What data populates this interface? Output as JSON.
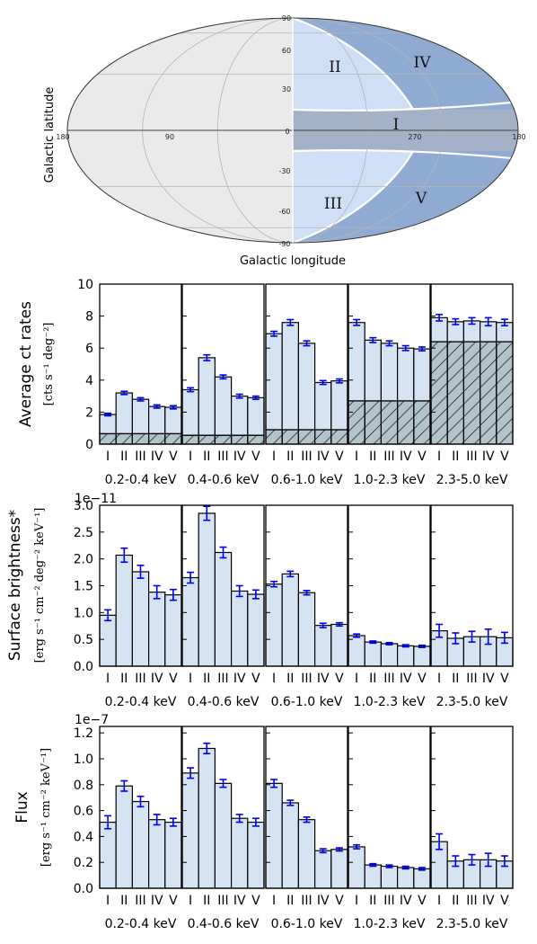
{
  "map": {
    "xlabel": "Galactic longitude",
    "ylabel": "Galactic latitude",
    "lon_ticks": [
      "180",
      "90",
      "0",
      "270",
      "180"
    ],
    "lat_ticks": [
      "90",
      "60",
      "30",
      "-30",
      "-60",
      "-90"
    ],
    "lat_zero": "0",
    "regions": [
      "I",
      "II",
      "III",
      "IV",
      "V"
    ],
    "colors": {
      "background": "#eaeaea",
      "light_blue": "#cfe0f6",
      "mid_blue": "#8fabd2",
      "band": "#a3b2c6",
      "grid": "#b5b5b5"
    }
  },
  "chart_data": [
    {
      "type": "bar",
      "ylabel": "Average ct rates",
      "yunit": "[cts s⁻¹ deg⁻²]",
      "scale_label": "",
      "ylim": [
        0,
        10
      ],
      "yticks": [
        "0",
        "2",
        "4",
        "6",
        "8",
        "10"
      ],
      "categories": [
        "I",
        "II",
        "III",
        "IV",
        "V"
      ],
      "panels": [
        {
          "band": "0.2-0.4 keV",
          "values": [
            1.85,
            3.2,
            2.8,
            2.35,
            2.3
          ],
          "errors": [
            0.08,
            0.1,
            0.1,
            0.1,
            0.1
          ],
          "background": 0.65
        },
        {
          "band": "0.4-0.6 keV",
          "values": [
            3.4,
            5.4,
            4.2,
            3.0,
            2.9
          ],
          "errors": [
            0.12,
            0.18,
            0.12,
            0.12,
            0.1
          ],
          "background": 0.55
        },
        {
          "band": "0.6-1.0 keV",
          "values": [
            6.9,
            7.6,
            6.3,
            3.85,
            3.95
          ],
          "errors": [
            0.15,
            0.18,
            0.15,
            0.12,
            0.12
          ],
          "background": 0.9
        },
        {
          "band": "1.0-2.3 keV",
          "values": [
            7.6,
            6.5,
            6.3,
            6.0,
            5.95
          ],
          "errors": [
            0.18,
            0.15,
            0.15,
            0.15,
            0.12
          ],
          "background": 2.7
        },
        {
          "band": "2.3-5.0 keV",
          "values": [
            7.9,
            7.65,
            7.7,
            7.65,
            7.6
          ],
          "errors": [
            0.2,
            0.18,
            0.2,
            0.25,
            0.2
          ],
          "background": 6.4
        }
      ]
    },
    {
      "type": "bar",
      "ylabel": "Surface brightness*",
      "yunit": "[erg s⁻¹ cm⁻² deg⁻² keV⁻¹]",
      "scale_label": "1e−11",
      "ylim": [
        0,
        3.0
      ],
      "yticks": [
        "0.0",
        "0.5",
        "1.0",
        "1.5",
        "2.0",
        "2.5",
        "3.0"
      ],
      "categories": [
        "I",
        "II",
        "III",
        "IV",
        "V"
      ],
      "panels": [
        {
          "band": "0.2-0.4 keV",
          "values": [
            0.95,
            2.07,
            1.76,
            1.38,
            1.33
          ],
          "errors": [
            0.1,
            0.13,
            0.12,
            0.12,
            0.1
          ],
          "background": 0
        },
        {
          "band": "0.4-0.6 keV",
          "values": [
            1.65,
            2.85,
            2.12,
            1.4,
            1.34
          ],
          "errors": [
            0.1,
            0.13,
            0.1,
            0.1,
            0.08
          ],
          "background": 0
        },
        {
          "band": "0.6-1.0 keV",
          "values": [
            1.53,
            1.72,
            1.37,
            0.76,
            0.78
          ],
          "errors": [
            0.05,
            0.05,
            0.04,
            0.04,
            0.03
          ],
          "background": 0
        },
        {
          "band": "1.0-2.3 keV",
          "values": [
            0.57,
            0.45,
            0.42,
            0.38,
            0.37
          ],
          "errors": [
            0.03,
            0.02,
            0.02,
            0.02,
            0.02
          ],
          "background": 0
        },
        {
          "band": "2.3-5.0 keV",
          "values": [
            0.66,
            0.52,
            0.55,
            0.55,
            0.53
          ],
          "errors": [
            0.12,
            0.1,
            0.1,
            0.14,
            0.1
          ],
          "background": 0
        }
      ]
    },
    {
      "type": "bar",
      "ylabel": "Flux",
      "yunit": "[erg s⁻¹ cm⁻² keV⁻¹]",
      "scale_label": "1e−7",
      "ylim": [
        0,
        1.25
      ],
      "yticks": [
        "0.0",
        "0.2",
        "0.4",
        "0.6",
        "0.8",
        "1.0",
        "1.2"
      ],
      "categories": [
        "I",
        "II",
        "III",
        "IV",
        "V"
      ],
      "panels": [
        {
          "band": "0.2-0.4 keV",
          "values": [
            0.51,
            0.79,
            0.67,
            0.53,
            0.51
          ],
          "errors": [
            0.05,
            0.04,
            0.04,
            0.04,
            0.03
          ],
          "background": 0
        },
        {
          "band": "0.4-0.6 keV",
          "values": [
            0.89,
            1.08,
            0.81,
            0.54,
            0.51
          ],
          "errors": [
            0.04,
            0.04,
            0.03,
            0.03,
            0.03
          ],
          "background": 0
        },
        {
          "band": "0.6-1.0 keV",
          "values": [
            0.81,
            0.66,
            0.53,
            0.29,
            0.3
          ],
          "errors": [
            0.03,
            0.02,
            0.02,
            0.015,
            0.012
          ],
          "background": 0
        },
        {
          "band": "1.0-2.3 keV",
          "values": [
            0.32,
            0.18,
            0.17,
            0.16,
            0.15
          ],
          "errors": [
            0.015,
            0.01,
            0.01,
            0.01,
            0.01
          ],
          "background": 0
        },
        {
          "band": "2.3-5.0 keV",
          "values": [
            0.36,
            0.21,
            0.22,
            0.22,
            0.21
          ],
          "errors": [
            0.06,
            0.04,
            0.04,
            0.05,
            0.04
          ],
          "background": 0
        }
      ]
    }
  ]
}
